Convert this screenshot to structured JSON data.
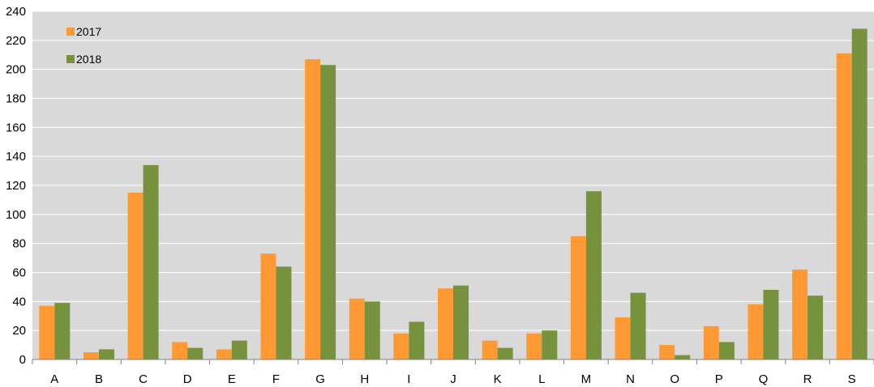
{
  "chart_data": {
    "type": "bar",
    "title": "",
    "xlabel": "",
    "ylabel": "",
    "categories": [
      "A",
      "B",
      "C",
      "D",
      "E",
      "F",
      "G",
      "H",
      "I",
      "J",
      "K",
      "L",
      "M",
      "N",
      "O",
      "P",
      "Q",
      "R",
      "S"
    ],
    "series": [
      {
        "name": "2017",
        "color": "#ff9933",
        "values": [
          37,
          5,
          115,
          12,
          7,
          73,
          207,
          42,
          18,
          49,
          13,
          18,
          85,
          29,
          10,
          23,
          38,
          62,
          211
        ]
      },
      {
        "name": "2018",
        "color": "#76923c",
        "values": [
          39,
          7,
          134,
          8,
          13,
          64,
          203,
          40,
          26,
          51,
          8,
          20,
          116,
          46,
          3,
          12,
          48,
          44,
          228
        ]
      }
    ],
    "ylim": [
      0,
      240
    ],
    "yticks": [
      0,
      20,
      40,
      60,
      80,
      100,
      120,
      140,
      160,
      180,
      200,
      220,
      240
    ],
    "grid": true,
    "legend": "top-left",
    "plot_background": "#d9d9d9",
    "gridline_color": "#ffffff"
  }
}
